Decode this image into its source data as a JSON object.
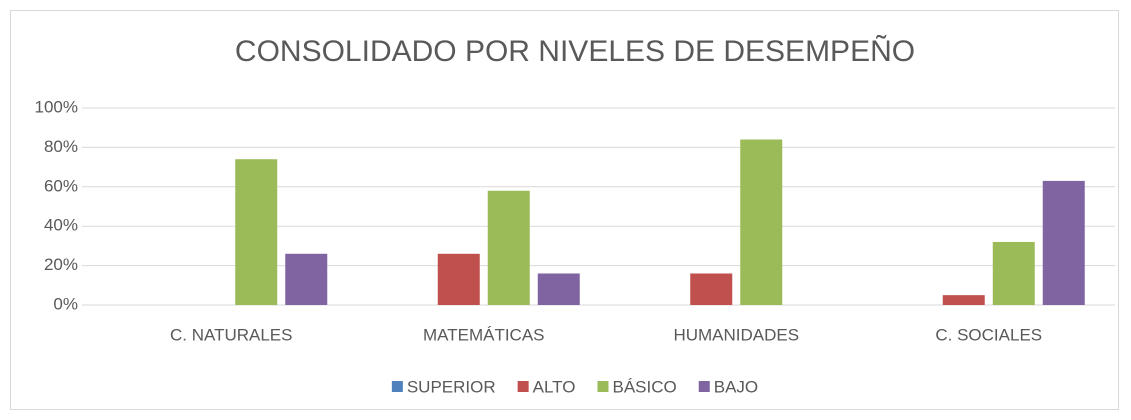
{
  "chart_data": {
    "type": "bar",
    "title": "CONSOLIDADO POR NIVELES DE DESEMPEÑO",
    "categories": [
      "C. NATURALES",
      "MATEMÁTICAS",
      "HUMANIDADES",
      "C. SOCIALES"
    ],
    "series": [
      {
        "name": "SUPERIOR",
        "color": "#4f81bd",
        "values": [
          0,
          0,
          0,
          0
        ]
      },
      {
        "name": "ALTO",
        "color": "#c0504d",
        "values": [
          0,
          26,
          16,
          5
        ]
      },
      {
        "name": "BÁSICO",
        "color": "#9bbb59",
        "values": [
          74,
          58,
          84,
          32
        ]
      },
      {
        "name": "BAJO",
        "color": "#8064a2",
        "values": [
          26,
          16,
          0,
          63
        ]
      }
    ],
    "ylim": [
      0,
      100
    ],
    "yticks": [
      {
        "value": 0,
        "label": "0%"
      },
      {
        "value": 20,
        "label": "20%"
      },
      {
        "value": 40,
        "label": "40%"
      },
      {
        "value": 60,
        "label": "60%"
      },
      {
        "value": 80,
        "label": "80%"
      },
      {
        "value": 100,
        "label": "100%"
      }
    ],
    "grid": true,
    "legend": "bottom"
  }
}
